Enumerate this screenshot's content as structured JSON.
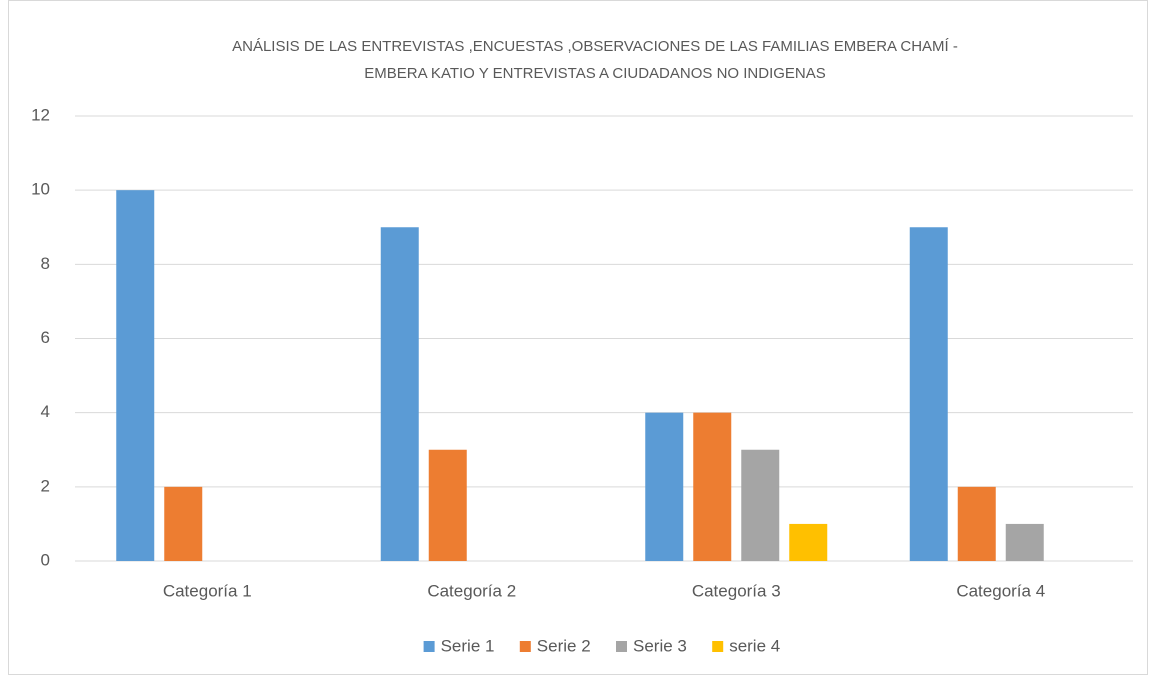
{
  "chart_data": {
    "type": "bar",
    "title": [
      "ANÁLISIS DE LAS ENTREVISTAS ,ENCUESTAS ,OBSERVACIONES DE LAS FAMILIAS  EMBERA CHAMÍ -",
      "EMBERA KATIO  Y ENTREVISTAS A CIUDADANOS  NO INDIGENAS"
    ],
    "categories": [
      "Categoría 1",
      "Categoría 2",
      "Categoría 3",
      "Categoría 4"
    ],
    "series": [
      {
        "name": "Serie 1",
        "color": "#5b9bd5",
        "values": [
          10,
          9,
          4,
          9
        ]
      },
      {
        "name": "Serie 2",
        "color": "#ed7d31",
        "values": [
          2,
          3,
          4,
          2
        ]
      },
      {
        "name": "Serie 3",
        "color": "#a5a5a5",
        "values": [
          0,
          0,
          3,
          1
        ]
      },
      {
        "name": "serie 4",
        "color": "#ffc000",
        "values": [
          0,
          0,
          1,
          0
        ]
      }
    ],
    "ylim": [
      0,
      12
    ],
    "yticks": [
      0,
      2,
      4,
      6,
      8,
      10,
      12
    ],
    "grid": true,
    "legend": "bottom"
  }
}
